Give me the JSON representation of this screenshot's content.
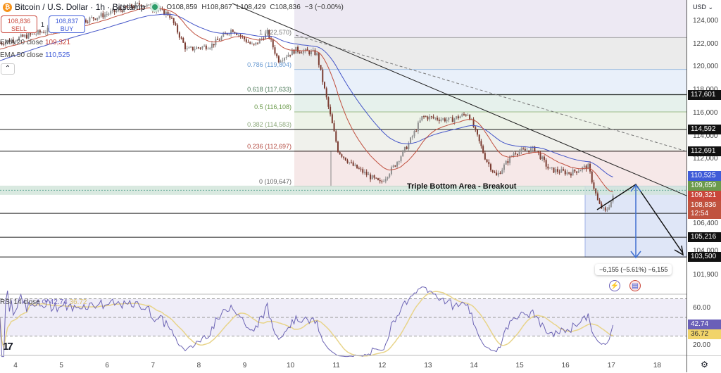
{
  "header": {
    "symbol": "Bitcoin / U.S. Dollar · 1h · Bitstamp",
    "open": "O108,859",
    "high": "H108,867",
    "low": "L108,429",
    "close": "C108,836",
    "change": "−3 (−0.00%)",
    "coin_icon": "bitcoin-icon"
  },
  "trade": {
    "sell_price": "108,836",
    "sell_label": "SELL",
    "spread": "1",
    "buy_price": "108,837",
    "buy_label": "BUY"
  },
  "legend": {
    "ema20_label": "EMA 20 close",
    "ema20_value": "109,321",
    "ema50_label": "EMA 50 close",
    "ema50_value": "110,525",
    "rsi_label": "RSI 14 close",
    "rsi_value": "42.74",
    "rsi_ma_value": "36.72"
  },
  "axis": {
    "currency": "USD ⌄",
    "price_ticks": [
      [
        "124,000",
        124000
      ],
      [
        "122,000",
        122000
      ],
      [
        "120,000",
        120000
      ],
      [
        "118,000",
        118000
      ],
      [
        "116,000",
        116000
      ],
      [
        "114,000",
        114000
      ],
      [
        "112,000",
        112000
      ],
      [
        "106,400",
        106400
      ],
      [
        "104,000",
        104000
      ],
      [
        "101,900",
        101900
      ]
    ],
    "rsi_ticks": [
      [
        "60.00",
        60
      ],
      [
        "20.00",
        20
      ]
    ],
    "dates": [
      4,
      5,
      6,
      7,
      8,
      9,
      10,
      11,
      12,
      13,
      14,
      15,
      16,
      17,
      18
    ]
  },
  "levels": [
    117601,
    114592,
    112691,
    107294,
    105216,
    103500
  ],
  "level_labels": [
    "117,601",
    "114,592",
    "112,691",
    "107,294",
    "105,216",
    "103,500"
  ],
  "badges": [
    {
      "text": "110,525",
      "price": 110525,
      "color": "#3f5bd8"
    },
    {
      "text": "109,659",
      "price": 109659,
      "color": "#6b9a4c"
    },
    {
      "text": "109,321",
      "price": 109321,
      "color": "#c9463a"
    },
    {
      "text": "108,836",
      "sub": "12:54",
      "price": 108836,
      "color": "#c0533f"
    }
  ],
  "rsi_badges": [
    {
      "text": "42.74",
      "value": 42.74,
      "color": "#6a5fb8",
      "fg": "#fff"
    },
    {
      "text": "36.72",
      "value": 36.72,
      "color": "#f1d46a",
      "fg": "#333"
    }
  ],
  "fib": [
    {
      "label": "1 (122,570)",
      "price": 122570,
      "color": "#777"
    },
    {
      "label": "0.786 (119,804)",
      "price": 119804,
      "color": "#6a9bd2"
    },
    {
      "label": "0.618 (117,633)",
      "price": 117633,
      "color": "#4d7a5a"
    },
    {
      "label": "0.5 (116,108)",
      "price": 116108,
      "color": "#6a9a4a"
    },
    {
      "label": "0.382 (114,583)",
      "price": 114583,
      "color": "#8aa678"
    },
    {
      "label": "0.236 (112,697)",
      "price": 112697,
      "color": "#b34a40"
    },
    {
      "label": "0 (109,647)",
      "price": 109647,
      "color": "#666"
    }
  ],
  "annotation": {
    "triple_bottom": "Triple Bottom Area - Breakout",
    "measure": "−6,155 (−5.61%) −6,155"
  },
  "colors": {
    "up": "#8f8f8f",
    "down": "#7a3b30",
    "ema20": "#c0503f",
    "ema50": "#4455c8",
    "rsi": "#6c64b4",
    "rsi_ma": "#e8d48a"
  },
  "price_path": [
    [
      3.66,
      122100
    ],
    [
      5.2,
      123700
    ],
    [
      5.97,
      124600
    ],
    [
      6.73,
      125500
    ],
    [
      7.35,
      124600
    ],
    [
      7.73,
      121500
    ],
    [
      8.27,
      121900
    ],
    [
      8.73,
      123300
    ],
    [
      9.19,
      121800
    ],
    [
      9.5,
      123000
    ],
    [
      9.73,
      120600
    ],
    [
      10.11,
      121500
    ],
    [
      10.57,
      121200
    ],
    [
      10.8,
      117000
    ],
    [
      11.04,
      112700
    ],
    [
      11.34,
      111500
    ],
    [
      11.96,
      109900
    ],
    [
      12.26,
      111400
    ],
    [
      12.57,
      113300
    ],
    [
      12.88,
      115700
    ],
    [
      13.49,
      115400
    ],
    [
      13.88,
      116000
    ],
    [
      14.26,
      112000
    ],
    [
      14.49,
      110500
    ],
    [
      14.88,
      112600
    ],
    [
      15.34,
      112900
    ],
    [
      15.64,
      111100
    ],
    [
      16.1,
      110800
    ],
    [
      16.49,
      111400
    ],
    [
      16.72,
      108100
    ],
    [
      16.87,
      107400
    ],
    [
      17.06,
      108836
    ]
  ]
}
